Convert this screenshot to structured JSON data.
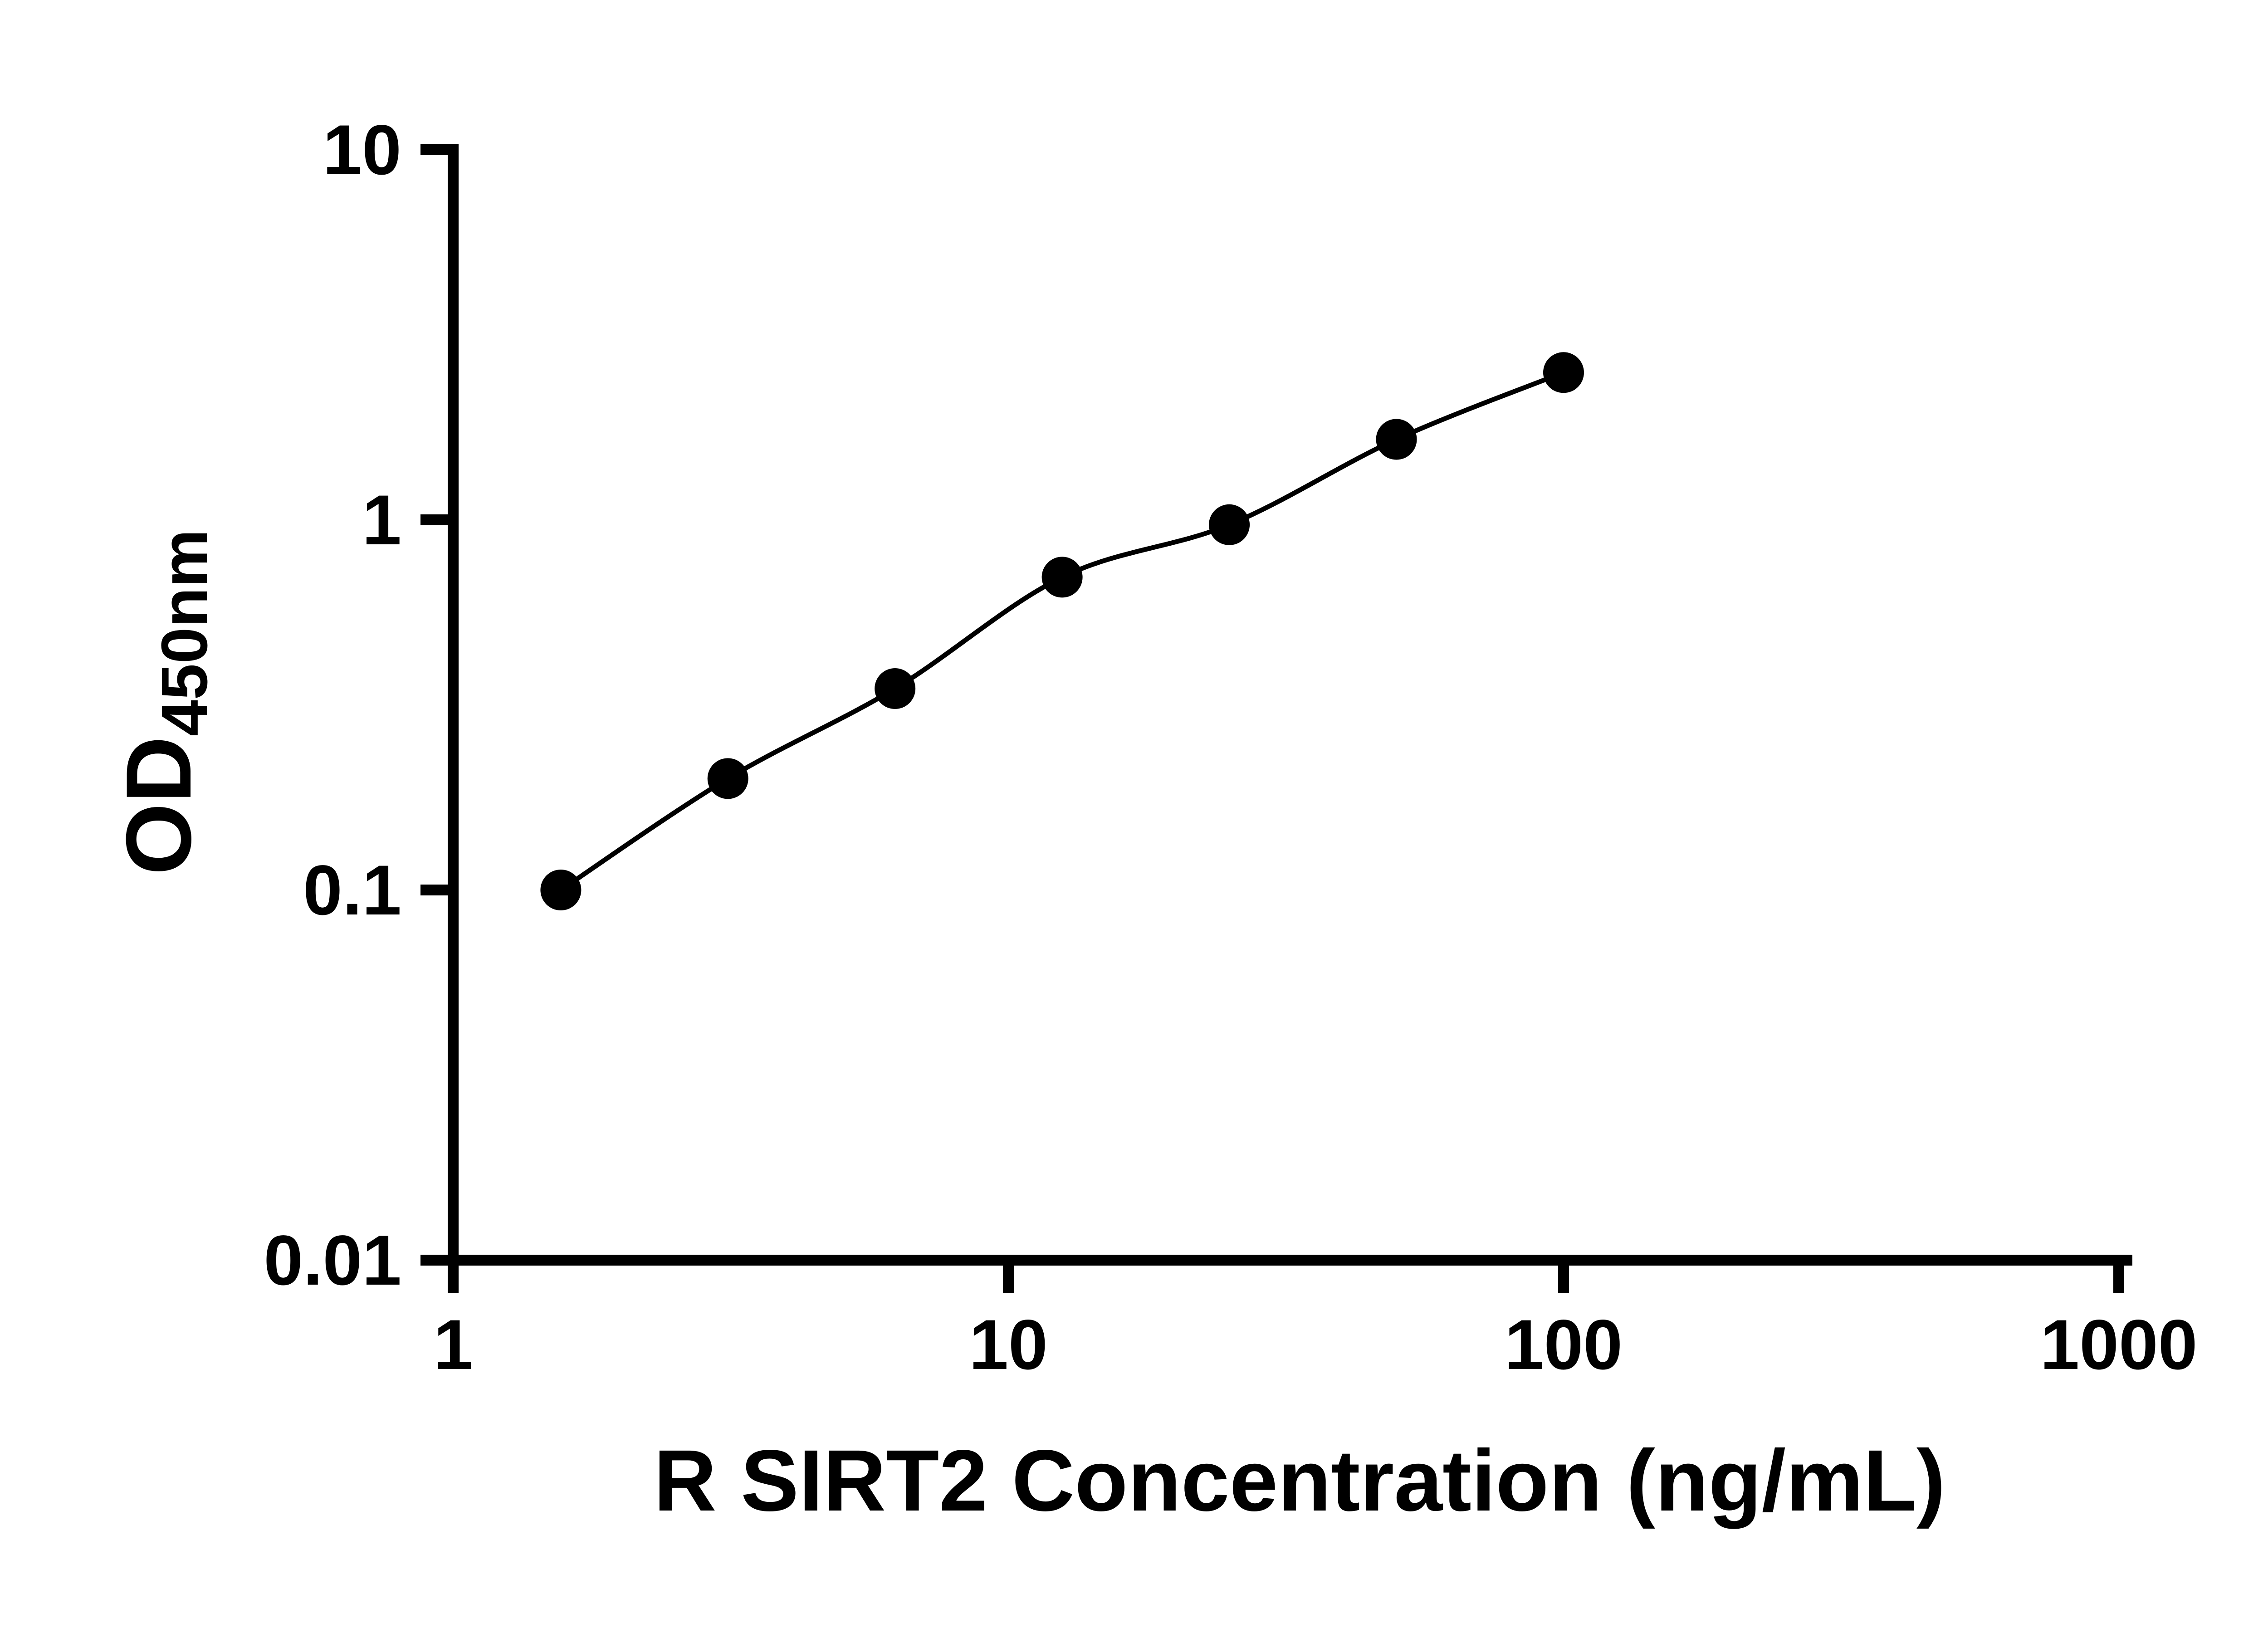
{
  "chart_data": {
    "type": "scatter",
    "title": "",
    "xlabel": "R SIRT2 Concentration (ng/mL)",
    "ylabel_main": "OD",
    "ylabel_sub": "450nm",
    "x_scale": "log",
    "y_scale": "log",
    "xlim": [
      1,
      1000
    ],
    "ylim": [
      0.01,
      10
    ],
    "x_ticks": [
      1,
      10,
      100,
      1000
    ],
    "x_tick_labels": [
      "1",
      "10",
      "100",
      "1000"
    ],
    "y_ticks": [
      0.01,
      0.1,
      1,
      10
    ],
    "y_tick_labels": [
      "0.01",
      "0.1",
      "1",
      "10"
    ],
    "points": [
      {
        "x": 1.563,
        "y": 0.1
      },
      {
        "x": 3.125,
        "y": 0.2
      },
      {
        "x": 6.25,
        "y": 0.35
      },
      {
        "x": 12.5,
        "y": 0.7
      },
      {
        "x": 25,
        "y": 0.97
      },
      {
        "x": 50,
        "y": 1.65
      },
      {
        "x": 100,
        "y": 2.5
      }
    ],
    "grid": false,
    "legend": false,
    "marker_color": "#000000",
    "line_color": "#000000",
    "background_color": "#ffffff"
  }
}
